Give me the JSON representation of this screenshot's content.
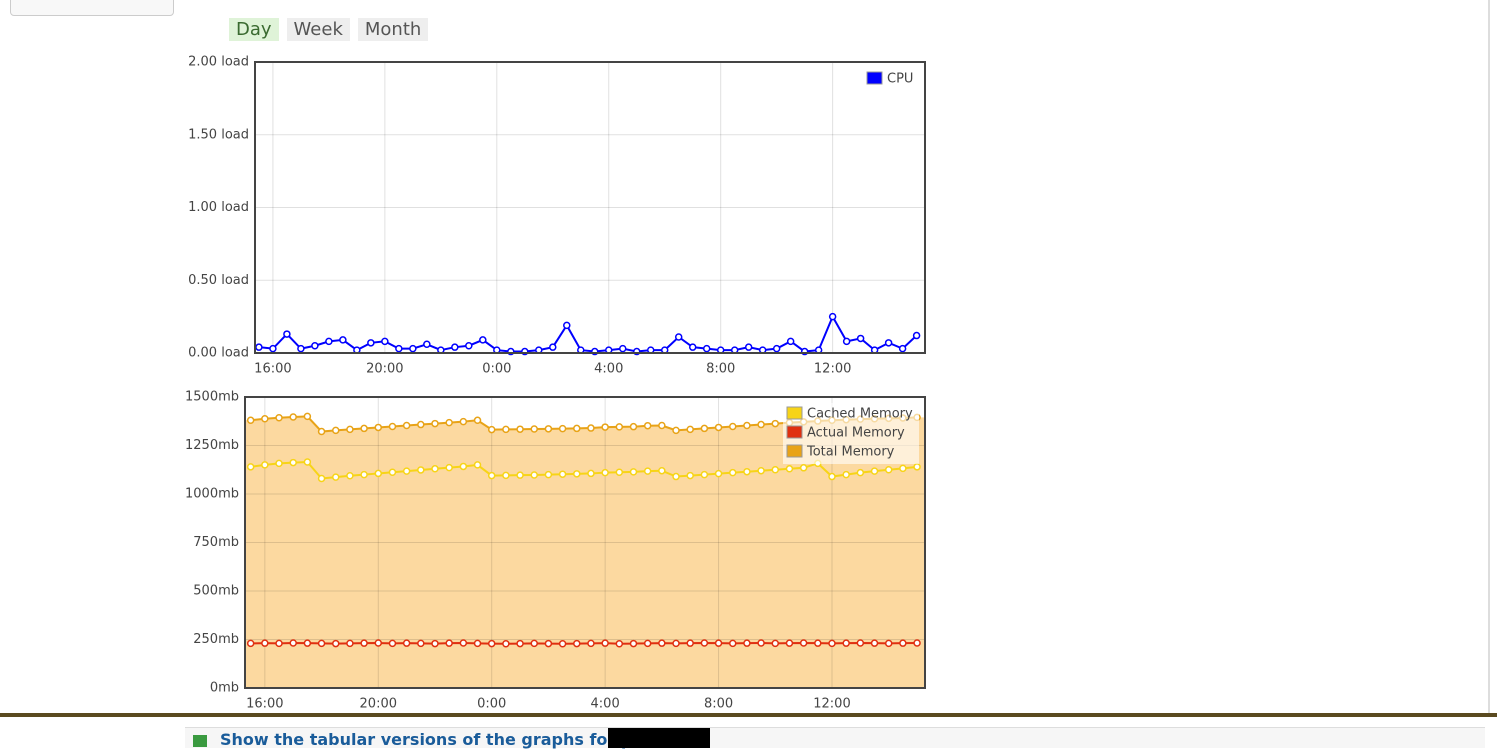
{
  "tabs": [
    "Day",
    "Week",
    "Month"
  ],
  "link": "Show the tabular versions of the graphs for ps",
  "chart_data": [
    {
      "type": "line",
      "grid": true,
      "legend": "upper right",
      "xlim": [
        -0.64,
        23.3
      ],
      "xticks": [
        {
          "value": 0,
          "label": "16:00"
        },
        {
          "value": 4,
          "label": "20:00"
        },
        {
          "value": 8,
          "label": "0:00"
        },
        {
          "value": 12,
          "label": "4:00"
        },
        {
          "value": 16,
          "label": "8:00"
        },
        {
          "value": 20,
          "label": "12:00"
        }
      ],
      "ylim": [
        0,
        2
      ],
      "yticks": [
        {
          "value": 0,
          "label": "0.00 load"
        },
        {
          "value": 0.5,
          "label": "0.50 load"
        },
        {
          "value": 1,
          "label": "1.00 load"
        },
        {
          "value": 1.5,
          "label": "1.50 load"
        },
        {
          "value": 2,
          "label": "2.00 load"
        }
      ],
      "x": [
        -0.5,
        0,
        0.5,
        1,
        1.5,
        2,
        2.5,
        3,
        3.5,
        4,
        4.5,
        5,
        5.5,
        6,
        6.5,
        7,
        7.5,
        8,
        8.5,
        9,
        9.5,
        10,
        10.5,
        11,
        11.5,
        12,
        12.5,
        13,
        13.5,
        14,
        14.5,
        15,
        15.5,
        16,
        16.5,
        17,
        17.5,
        18,
        18.5,
        19,
        19.5,
        20,
        20.5,
        21,
        21.5,
        22,
        22.5,
        23
      ],
      "series": [
        {
          "name": "CPU",
          "color": "#0000ff",
          "values": [
            0.04,
            0.03,
            0.13,
            0.03,
            0.05,
            0.08,
            0.09,
            0.02,
            0.07,
            0.08,
            0.03,
            0.03,
            0.06,
            0.02,
            0.04,
            0.05,
            0.09,
            0.02,
            0.01,
            0.01,
            0.02,
            0.04,
            0.19,
            0.02,
            0.01,
            0.02,
            0.03,
            0.01,
            0.02,
            0.02,
            0.11,
            0.04,
            0.03,
            0.02,
            0.02,
            0.04,
            0.02,
            0.03,
            0.08,
            0.01,
            0.02,
            0.25,
            0.08,
            0.1,
            0.02,
            0.07,
            0.03,
            0.12
          ]
        }
      ]
    },
    {
      "type": "line",
      "grid": true,
      "legend": "upper right",
      "xlim": [
        -0.7,
        23.28
      ],
      "xticks": [
        {
          "value": 0,
          "label": "16:00"
        },
        {
          "value": 4,
          "label": "20:00"
        },
        {
          "value": 8,
          "label": "0:00"
        },
        {
          "value": 12,
          "label": "4:00"
        },
        {
          "value": 16,
          "label": "8:00"
        },
        {
          "value": 20,
          "label": "12:00"
        }
      ],
      "ylim": [
        0,
        1500
      ],
      "yticks": [
        {
          "value": 0,
          "label": "0mb"
        },
        {
          "value": 250,
          "label": "250mb"
        },
        {
          "value": 500,
          "label": "500mb"
        },
        {
          "value": 750,
          "label": "750mb"
        },
        {
          "value": 1000,
          "label": "1000mb"
        },
        {
          "value": 1250,
          "label": "1250mb"
        },
        {
          "value": 1500,
          "label": "1500mb"
        }
      ],
      "x": [
        -0.5,
        0,
        0.5,
        1,
        1.5,
        2,
        2.5,
        3,
        3.5,
        4,
        4.5,
        5,
        5.5,
        6,
        6.5,
        7,
        7.5,
        8,
        8.5,
        9,
        9.5,
        10,
        10.5,
        11,
        11.5,
        12,
        12.5,
        13,
        13.5,
        14,
        14.5,
        15,
        15.5,
        16,
        16.5,
        17,
        17.5,
        18,
        18.5,
        19,
        19.5,
        20,
        20.5,
        21,
        21.5,
        22,
        22.5,
        23
      ],
      "series": [
        {
          "name": "Cached Memory",
          "color": "#f7d417",
          "values": [
            1140,
            1150,
            1158,
            1162,
            1165,
            1080,
            1087,
            1094,
            1100,
            1106,
            1112,
            1118,
            1124,
            1130,
            1136,
            1142,
            1150,
            1095,
            1096,
            1097,
            1098,
            1100,
            1102,
            1104,
            1106,
            1110,
            1112,
            1114,
            1118,
            1120,
            1090,
            1095,
            1100,
            1105,
            1110,
            1115,
            1120,
            1125,
            1130,
            1135,
            1158,
            1090,
            1100,
            1110,
            1118,
            1125,
            1132,
            1140
          ]
        },
        {
          "name": "Actual Memory",
          "color": "#e03010",
          "values": [
            230,
            231,
            230,
            232,
            231,
            230,
            229,
            230,
            231,
            232,
            230,
            231,
            230,
            229,
            231,
            232,
            230,
            229,
            228,
            229,
            230,
            229,
            228,
            229,
            230,
            231,
            228,
            229,
            230,
            231,
            230,
            231,
            232,
            231,
            230,
            231,
            232,
            230,
            231,
            232,
            231,
            230,
            231,
            232,
            231,
            230,
            231,
            232
          ]
        },
        {
          "name": "Total Memory",
          "color": "#e8a317",
          "fill": "#fcd9a0",
          "values": [
            1380,
            1388,
            1393,
            1397,
            1400,
            1322,
            1328,
            1333,
            1338,
            1343,
            1348,
            1353,
            1358,
            1363,
            1368,
            1373,
            1380,
            1332,
            1333,
            1334,
            1335,
            1336,
            1337,
            1338,
            1340,
            1345,
            1346,
            1347,
            1352,
            1353,
            1328,
            1333,
            1338,
            1343,
            1348,
            1353,
            1358,
            1363,
            1368,
            1372,
            1376,
            1380,
            1383,
            1386,
            1388,
            1390,
            1392,
            1395
          ]
        }
      ]
    }
  ]
}
